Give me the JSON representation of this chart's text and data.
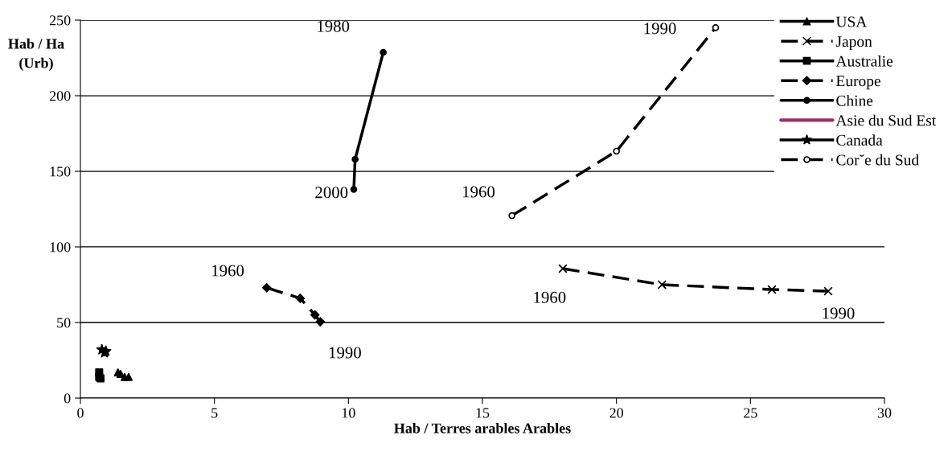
{
  "chart_data": {
    "type": "line",
    "xlabel": "Hab / Terres arables Arables",
    "ylabel": "Hab / Ha\n(Urb)",
    "xlim": [
      0,
      30
    ],
    "xticks": [
      0,
      5,
      10,
      15,
      20,
      25,
      30
    ],
    "ylim": [
      0,
      250
    ],
    "yticks": [
      0,
      50,
      100,
      150,
      200,
      250
    ],
    "grid": "y",
    "legend": "top right",
    "series": [
      {
        "name": "USA",
        "type": "scatter",
        "color": "#000000",
        "marker": "triangle",
        "line_style": "solid",
        "x": [
          1.4,
          1.5,
          1.65,
          1.8
        ],
        "values": [
          17,
          16,
          14,
          14
        ]
      },
      {
        "name": "Japon",
        "color": "#000000",
        "marker": "cross",
        "line_style": "dashed",
        "x": [
          18.0,
          21.7,
          25.8,
          27.9
        ],
        "values": [
          85.6,
          75,
          71.8,
          70.7
        ]
      },
      {
        "name": "Australie",
        "type": "scatter",
        "color": "#000000",
        "marker": "square",
        "line_style": "solid",
        "x": [
          0.7,
          0.7,
          0.75
        ],
        "values": [
          17,
          14,
          13
        ]
      },
      {
        "name": "Europe",
        "color": "#000000",
        "marker": "diamond",
        "line_style": "dashed",
        "x": [
          6.95,
          8.2,
          8.75,
          8.95
        ],
        "values": [
          73,
          66,
          55,
          50.5
        ]
      },
      {
        "name": "Chine",
        "color": "#000000",
        "marker": "circle",
        "line_style": "solid",
        "x": [
          11.3,
          10.25,
          10.2
        ],
        "values": [
          228.7,
          158,
          138
        ]
      },
      {
        "name": "Asie du Sud Est",
        "color": "#993366",
        "marker": "none",
        "line_style": "solid"
      },
      {
        "name": "Canada",
        "type": "scatter",
        "color": "#000000",
        "marker": "star",
        "line_style": "solid",
        "x": [
          0.8,
          0.9,
          0.95
        ],
        "values": [
          32,
          30,
          31
        ]
      },
      {
        "name": "Cor˘e du Sud",
        "color": "#000000",
        "marker": "circle",
        "line_style": "dashed",
        "x": [
          16.1,
          20.0,
          23.7
        ],
        "values": [
          120.7,
          163.3,
          245
        ]
      }
    ],
    "annotations": [
      {
        "text": "1980",
        "x": 11.3,
        "y": 228.7
      },
      {
        "text": "2000",
        "x": 10.2,
        "y": 138
      },
      {
        "text": "1960",
        "x": 6.95,
        "y": 73
      },
      {
        "text": "1990",
        "x": 8.95,
        "y": 50.5
      },
      {
        "text": "1960",
        "x": 16.1,
        "y": 120.7
      },
      {
        "text": "1990",
        "x": 23.7,
        "y": 245
      },
      {
        "text": "1960",
        "x": 18.0,
        "y": 85.6
      },
      {
        "text": "1990",
        "x": 27.9,
        "y": 70.7
      }
    ]
  }
}
